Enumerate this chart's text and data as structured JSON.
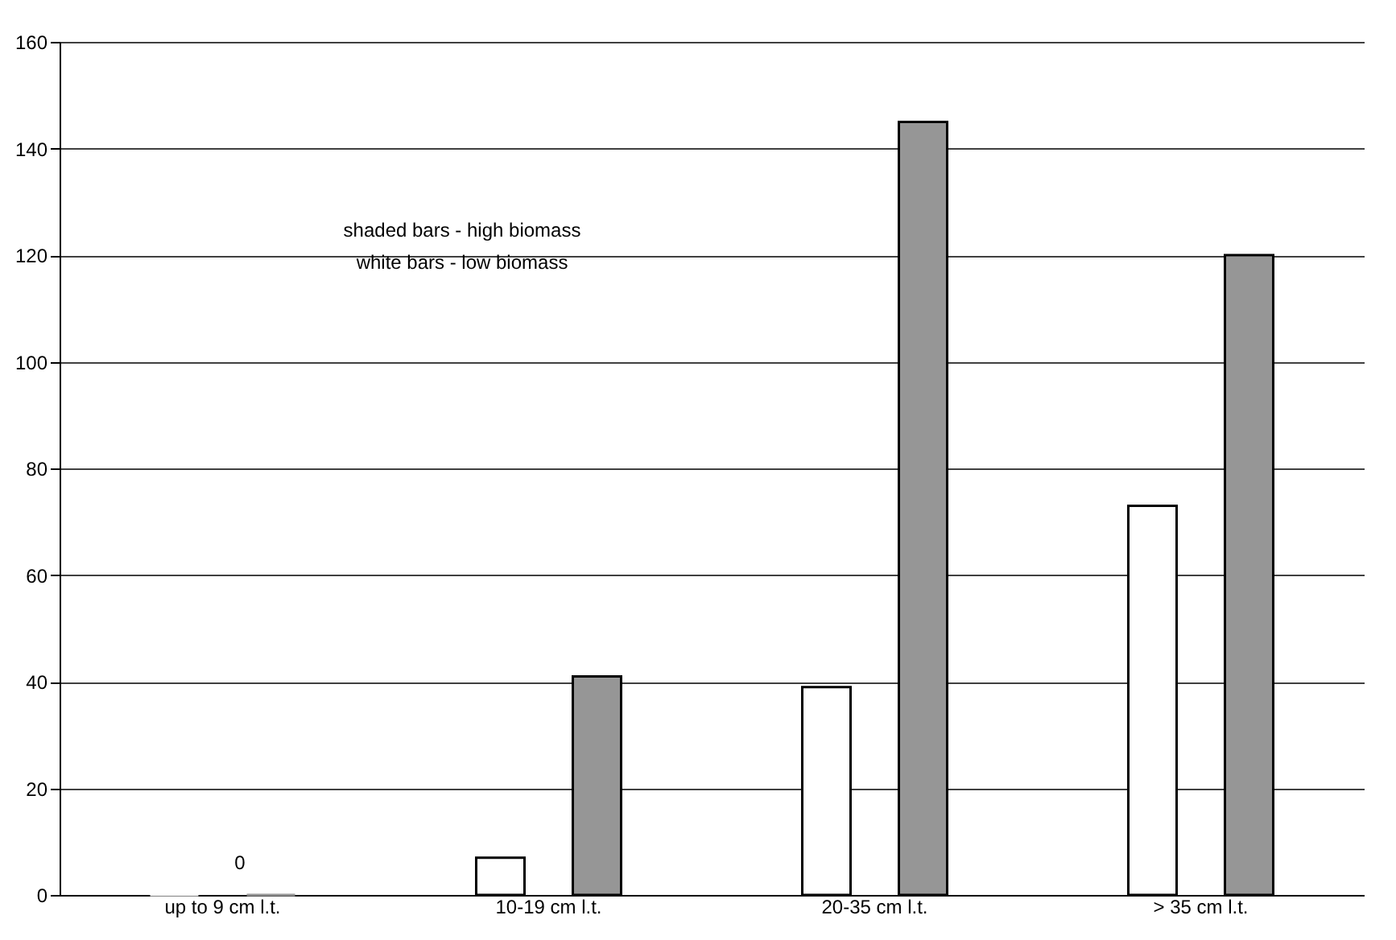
{
  "chart_data": {
    "type": "bar",
    "categories": [
      "up to  9 cm l.t.",
      "10-19 cm l.t.",
      "20-35 cm l.t.",
      "> 35 cm l.t."
    ],
    "series": [
      {
        "color": "#ffffff",
        "values": [
          0,
          7,
          39,
          73
        ]
      },
      {
        "color": "#969696",
        "values": [
          0,
          41,
          145,
          120
        ]
      }
    ],
    "ylim": [
      0,
      160
    ],
    "yticks": [
      0,
      20,
      40,
      60,
      80,
      100,
      120,
      140,
      160
    ],
    "grid": "y",
    "legend": false,
    "annotations": [
      "shaded bars - high biomass",
      "white bars - low biomass",
      "0"
    ]
  }
}
